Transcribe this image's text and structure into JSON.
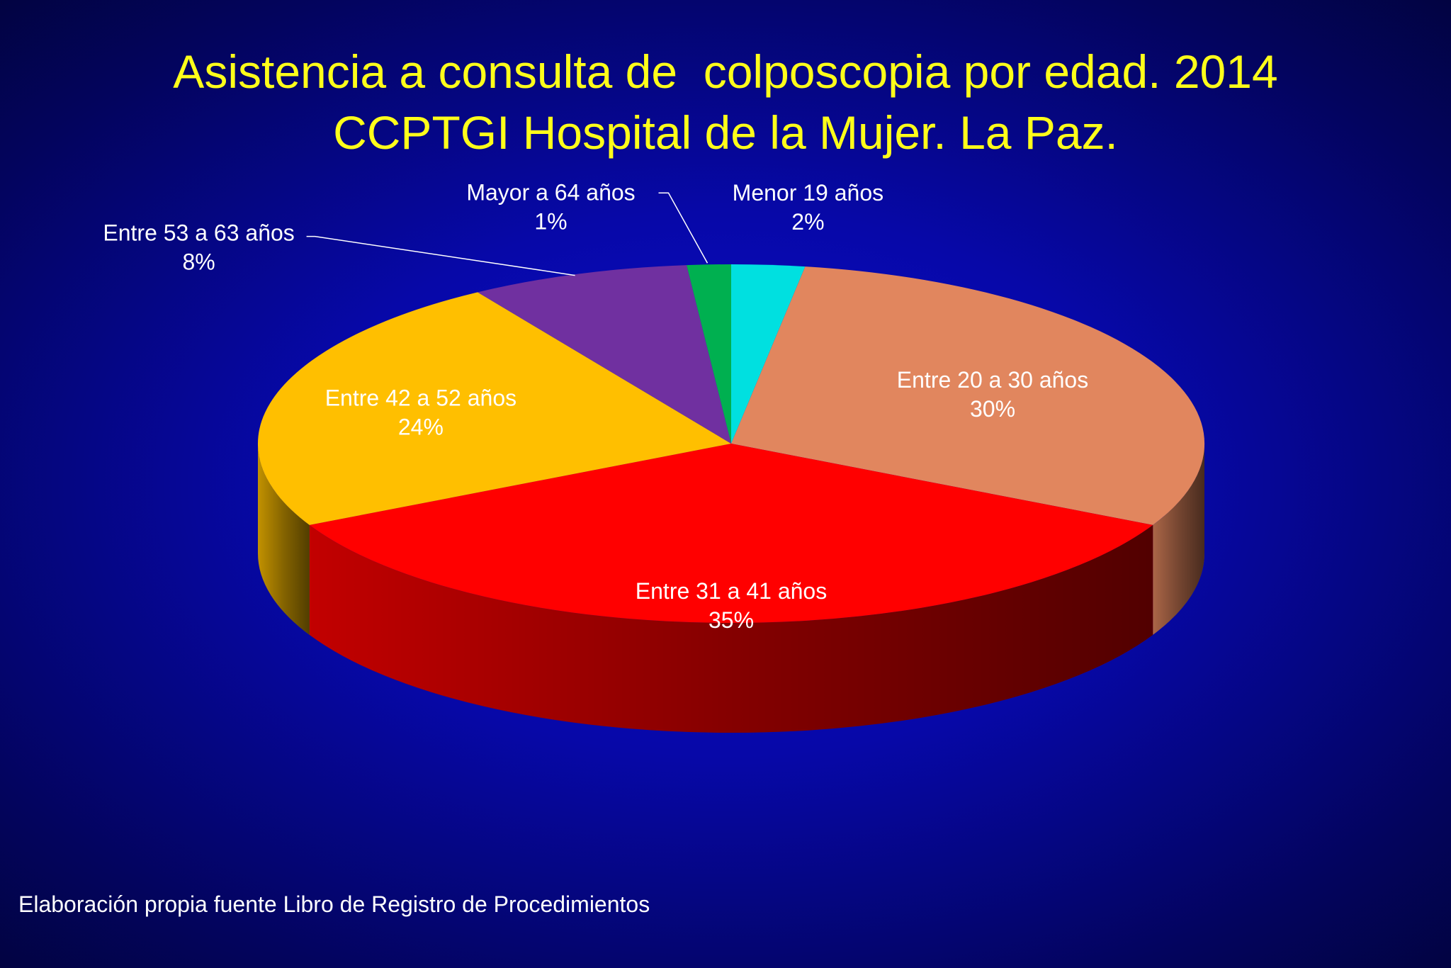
{
  "slide": {
    "title_line1": "Asistencia a consulta de  colposcopia por edad. 2014",
    "title_line2": "CCPTGI Hospital de la Mujer. La Paz.",
    "footer": "Elaboración propia fuente Libro de Registro de Procedimientos"
  },
  "chart_data": {
    "type": "pie",
    "style": "3d",
    "title": "Asistencia a consulta de  colposcopia por edad. 2014",
    "legend": "none",
    "slices": [
      {
        "label": "Menor 19 años",
        "percent_label": "2%",
        "value": 2.5,
        "color": "#00e0e0"
      },
      {
        "label": "Entre 20 a 30 años",
        "percent_label": "30%",
        "value": 30,
        "color": "#e1865e"
      },
      {
        "label": "Entre 31 a 41 años",
        "percent_label": "35%",
        "value": 35,
        "color": "#ff0000"
      },
      {
        "label": "Entre 42 a 52 años",
        "percent_label": "24%",
        "value": 23.5,
        "color": "#ffbf00"
      },
      {
        "label": "Entre 53 a 63 años",
        "percent_label": "8%",
        "value": 7.5,
        "color": "#7030a0"
      },
      {
        "label": "Mayor a 64 años",
        "percent_label": "1%",
        "value": 1.5,
        "color": "#00b050"
      }
    ]
  }
}
